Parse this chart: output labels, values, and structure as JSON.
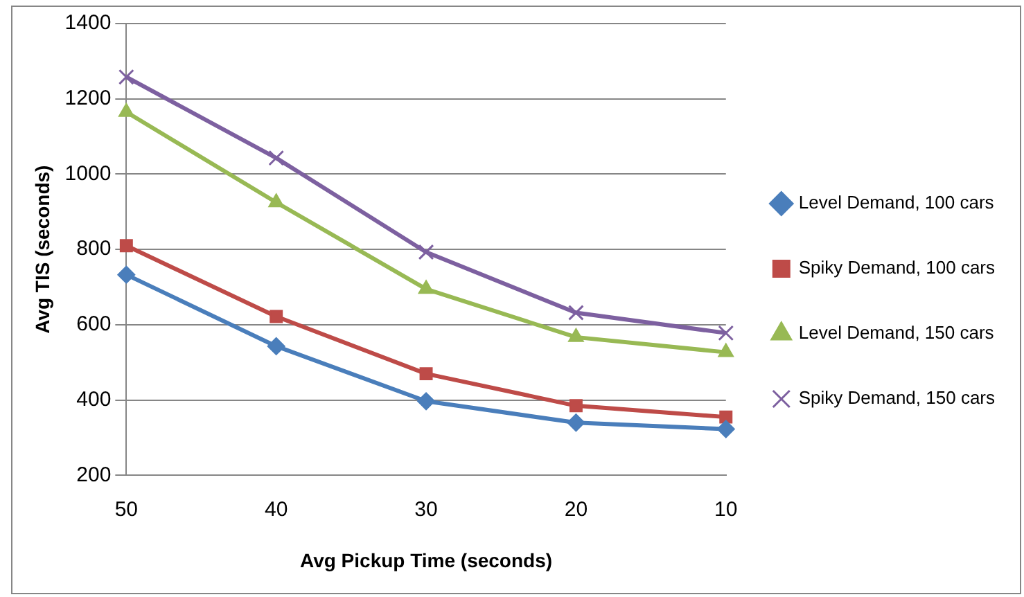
{
  "chart_data": {
    "type": "line",
    "xlabel": "Avg Pickup Time (seconds)",
    "ylabel": "Avg TIS (seconds)",
    "categories": [
      "50",
      "40",
      "30",
      "20",
      "10"
    ],
    "series": [
      {
        "name": "Level Demand, 100 cars",
        "color": "#4a7ebb",
        "marker": "diamond",
        "values": [
          733,
          543,
          397,
          340,
          323
        ]
      },
      {
        "name": "Spiky Demand, 100 cars",
        "color": "#be4b48",
        "marker": "square",
        "values": [
          810,
          622,
          470,
          385,
          355
        ]
      },
      {
        "name": "Level Demand, 150 cars",
        "color": "#98b954",
        "marker": "triangle",
        "values": [
          1165,
          925,
          695,
          567,
          527
        ]
      },
      {
        "name": "Spiky Demand, 150 cars",
        "color": "#7d60a0",
        "marker": "cross",
        "values": [
          1258,
          1043,
          793,
          632,
          578
        ]
      }
    ],
    "ylim": [
      200,
      1400
    ],
    "yticks": [
      200,
      400,
      600,
      800,
      1000,
      1200,
      1400
    ],
    "grid": "y",
    "legend": "right",
    "line_style": "solid"
  }
}
